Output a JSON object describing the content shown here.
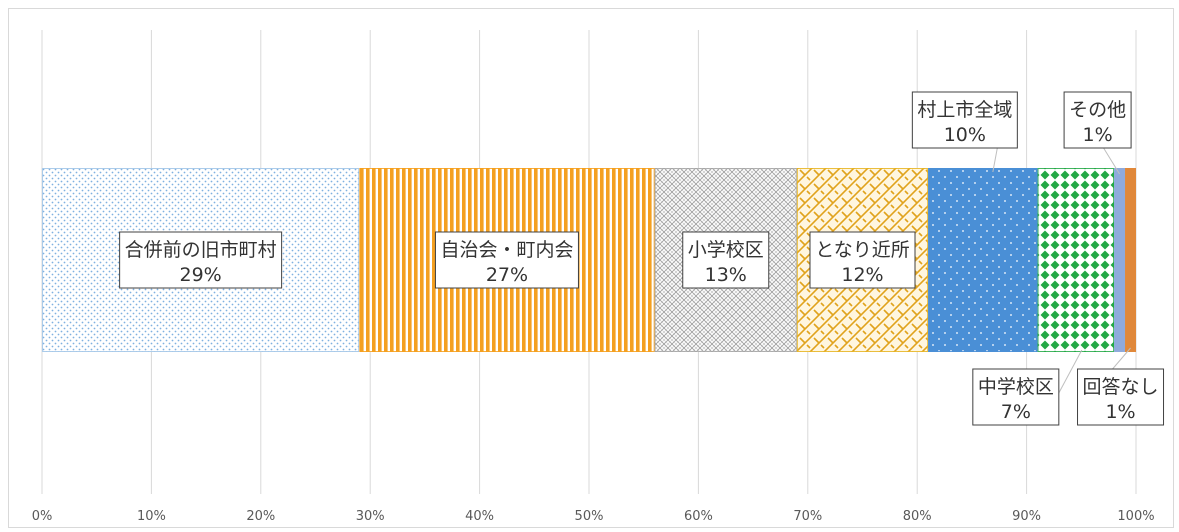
{
  "chart_data": {
    "type": "bar",
    "orientation": "horizontal-stacked-100",
    "xlim": [
      0,
      100
    ],
    "x_tick_labels": [
      "0%",
      "10%",
      "20%",
      "30%",
      "40%",
      "50%",
      "60%",
      "70%",
      "80%",
      "90%",
      "100%"
    ],
    "grid": true,
    "legend": "none",
    "series": [
      {
        "name": "合併前の旧市町村",
        "value": 29,
        "label": "29%",
        "color": "#9dc3e6",
        "pattern": "dots"
      },
      {
        "name": "自治会・町内会",
        "value": 27,
        "label": "27%",
        "color": "#f4a020",
        "pattern": "vertical-stripes"
      },
      {
        "name": "小学校区",
        "value": 13,
        "label": "13%",
        "color": "#a6a6a6",
        "pattern": "crosshatch"
      },
      {
        "name": "となり近所",
        "value": 12,
        "label": "12%",
        "color": "#e6b422",
        "pattern": "diagonal-weave"
      },
      {
        "name": "村上市全域",
        "value": 10,
        "label": "10%",
        "color": "#4a8fd6",
        "pattern": "white-dots"
      },
      {
        "name": "中学校区",
        "value": 7,
        "label": "7%",
        "color": "#22a845",
        "pattern": "diamonds"
      },
      {
        "name": "その他",
        "value": 1,
        "label": "1%",
        "color": "#8faadc",
        "pattern": "solid"
      },
      {
        "name": "回答なし",
        "value": 1,
        "label": "1%",
        "color": "#e0883a",
        "pattern": "solid"
      }
    ]
  }
}
